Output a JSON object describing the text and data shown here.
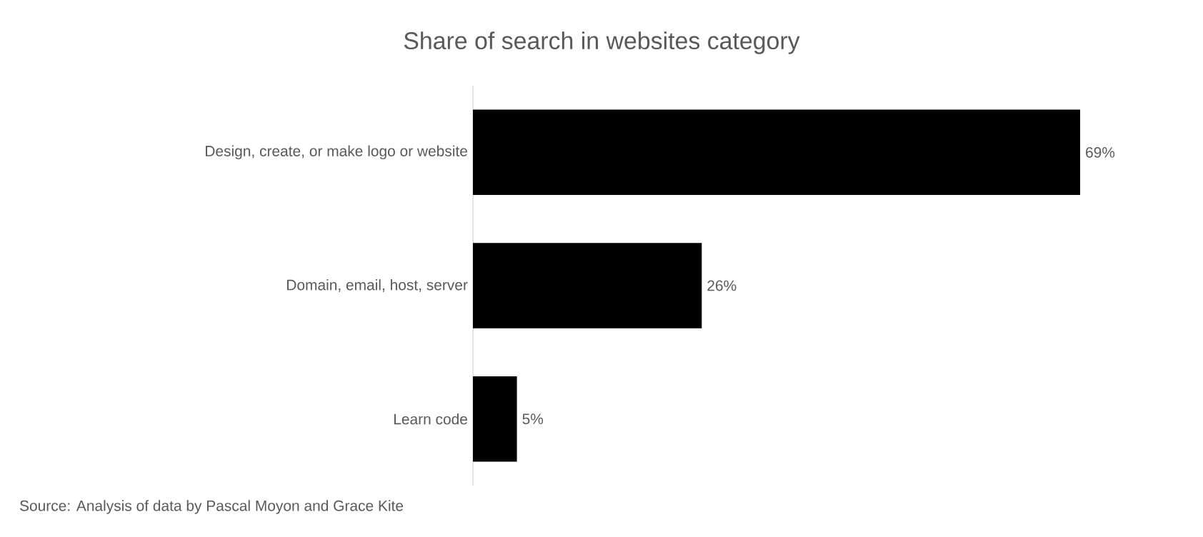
{
  "chart_data": {
    "type": "bar",
    "orientation": "horizontal",
    "tick_labels": "y",
    "title": "Share of search in websites category",
    "categories": [
      "Design, create, or make logo or website",
      "Domain, email, host, server",
      "Learn code"
    ],
    "values": [
      69,
      26,
      5
    ],
    "value_labels": [
      "69%",
      "26%",
      "5%"
    ],
    "color": "#000000",
    "annotations": [
      "Source: Analysis of data by Pascal Moyon and Grace Kite"
    ]
  }
}
